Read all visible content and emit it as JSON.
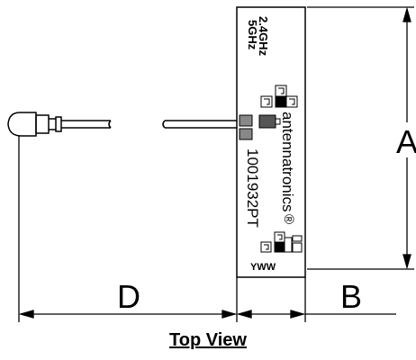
{
  "figure": {
    "view_title": "Top View",
    "dimensions": {
      "a": "A",
      "b": "B",
      "d": "D"
    },
    "antenna": {
      "freq_line1": "2.4GHz",
      "freq_line2": "5GHz",
      "brand": "antenna",
      "brand_rest": "tronics",
      "registered": "®",
      "part_number": "1001932PT",
      "date_code": "YWW"
    }
  }
}
